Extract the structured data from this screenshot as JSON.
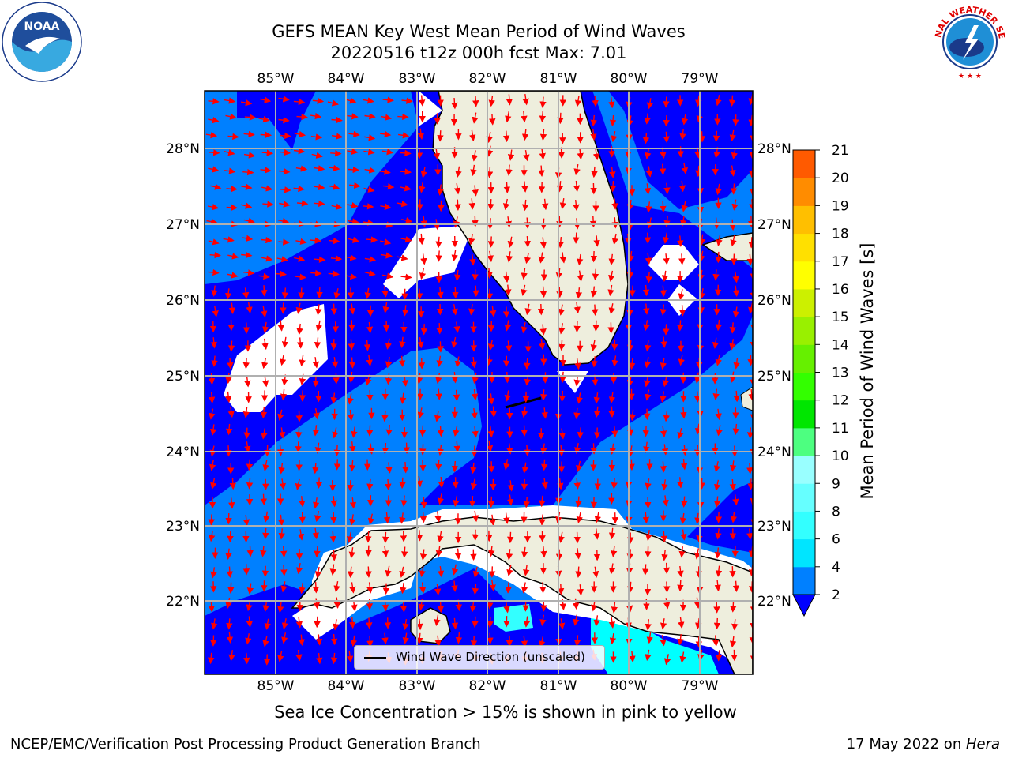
{
  "title": {
    "line1": "GEFS MEAN Key West Mean Period of Wind Waves",
    "line2": "20220516 t12z 000h fcst   Max: 7.01"
  },
  "logos": {
    "noaa": {
      "text": "NOAA",
      "ring_text": "NATIONAL OCEANIC AND ATMOSPHERIC ADMINISTRATION · U.S. DEPARTMENT OF COMMERCE"
    },
    "nws": {
      "ring_text": "NATIONAL WEATHER SERVICE"
    }
  },
  "map": {
    "lon_labels": [
      "85°W",
      "84°W",
      "83°W",
      "82°W",
      "81°W",
      "80°W",
      "79°W"
    ],
    "lat_labels": [
      "28°N",
      "27°N",
      "26°N",
      "25°N",
      "24°N",
      "23°N",
      "22°N"
    ],
    "colors": {
      "land": "#eeeedd",
      "period_2_4": "#0080ff",
      "period_below_2": "#0000ff",
      "period_4_6": "#00ffff",
      "no_data": "#ffffff",
      "arrow": "#ff0000",
      "grid": "#b0b0b0"
    }
  },
  "legend": {
    "label": "Wind Wave Direction (unscaled)"
  },
  "colorbar": {
    "label": "Mean Period of Wind Waves [s]",
    "ticks": [
      "2",
      "4",
      "6",
      "8",
      "9",
      "10",
      "11",
      "12",
      "13",
      "14",
      "15",
      "16",
      "17",
      "18",
      "19",
      "20",
      "21"
    ],
    "colors": [
      "#0080ff",
      "#00e5ff",
      "#33ffff",
      "#66ffff",
      "#99ffff",
      "#4dff80",
      "#00e600",
      "#33ff00",
      "#66f000",
      "#99f000",
      "#ccf000",
      "#ffff00",
      "#ffe000",
      "#ffbf00",
      "#ff8c00",
      "#ff5a00",
      "#ff2600",
      "#ff0000"
    ]
  },
  "footer": {
    "subtitle": "Sea Ice Concentration > 15% is shown in pink to yellow",
    "credit": "NCEP/EMC/Verification Post Processing Product Generation Branch",
    "date_prefix": "17 May 2022 on ",
    "date_host": "Hera"
  }
}
